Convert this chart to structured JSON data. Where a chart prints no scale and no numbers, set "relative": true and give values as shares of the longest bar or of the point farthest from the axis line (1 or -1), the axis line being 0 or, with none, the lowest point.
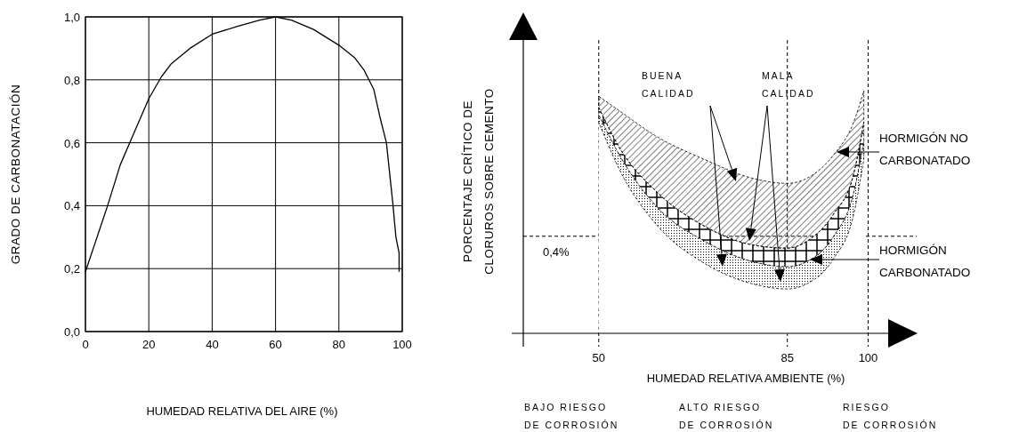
{
  "chart_data": [
    {
      "type": "line",
      "xlabel": "HUMEDAD RELATIVA DEL AIRE (%)",
      "ylabel": "GRADO DE CARBONATACIÓN",
      "xlim": [
        0,
        100
      ],
      "ylim": [
        0,
        1
      ],
      "xticks": [
        0,
        20,
        40,
        60,
        80,
        100
      ],
      "yticks": [
        {
          "value": 0,
          "label": "0,0"
        },
        {
          "value": 0.2,
          "label": "0,2"
        },
        {
          "value": 0.4,
          "label": "0,4"
        },
        {
          "value": 0.6,
          "label": "0,6"
        },
        {
          "value": 0.8,
          "label": "0,8"
        },
        {
          "value": 1,
          "label": "1,0"
        }
      ],
      "grid": true,
      "series": [
        {
          "color": "#000000",
          "x": [
            0,
            3,
            7,
            11,
            14,
            20,
            24,
            27,
            33,
            40,
            48,
            55,
            60,
            65,
            72,
            80,
            85,
            88,
            91,
            93,
            95,
            97,
            98,
            99,
            99
          ],
          "values": [
            0.19,
            0.28,
            0.4,
            0.53,
            0.6,
            0.74,
            0.81,
            0.85,
            0.9,
            0.945,
            0.97,
            0.99,
            1.0,
            0.99,
            0.96,
            0.91,
            0.87,
            0.83,
            0.77,
            0.68,
            0.6,
            0.41,
            0.3,
            0.25,
            0.19
          ]
        }
      ]
    },
    {
      "type": "area",
      "relative": true,
      "xlabel": "HUMEDAD RELATIVA AMBIENTE (%)",
      "ylabel": "PORCENTAJE CRÍTICO DE\nCLORUROS SOBRE CEMENTO",
      "xlim": [
        36,
        109
      ],
      "xticks": [
        50,
        85,
        100
      ],
      "x": [
        50,
        53.9,
        60.9,
        69.5,
        78.2,
        85,
        88.8,
        93.5,
        97.3,
        99.2
      ],
      "stacked": true,
      "series": [
        {
          "color": "#ffffff",
          "values": [
            0.87,
            0.672,
            0.443,
            0.29,
            0.206,
            0.183,
            0.206,
            0.305,
            0.489,
            0.718
          ]
        },
        {
          "color": "#000000",
          "values": [
            0.031,
            0.061,
            0.076,
            0.092,
            0.092,
            0.092,
            0.092,
            0.092,
            0.091,
            0.076
          ]
        },
        {
          "color": "#000000",
          "values": [
            0.03,
            0.03,
            0.061,
            0.061,
            0.068,
            0.076,
            0.084,
            0.092,
            0.076,
            0.076
          ]
        },
        {
          "color": "#000000",
          "values": [
            0.046,
            0.153,
            0.229,
            0.275,
            0.275,
            0.267,
            0.259,
            0.244,
            0.214,
            0.13
          ]
        }
      ],
      "ref_lines": [
        {
          "axis": "x",
          "value": 50,
          "line_style": "dashed"
        },
        {
          "axis": "x",
          "value": 85,
          "line_style": "dashed"
        },
        {
          "axis": "x",
          "value": 100,
          "line_style": "dashed"
        },
        {
          "axis": "y",
          "value": 0.4,
          "label": "0,4%",
          "line_style": "dashed"
        }
      ],
      "annotations": [
        "BUENA\nCALIDAD",
        "MALA\nCALIDAD",
        "HORMIGÓN NO\nCARBONATADO",
        "HORMIGÓN\nCARBONATADO",
        "BAJO RIESGO\nDE CORROSIÓN",
        "ALTO RIESGO\nDE CORROSIÓN",
        "RIESGO\nDE CORROSIÓN"
      ]
    }
  ]
}
